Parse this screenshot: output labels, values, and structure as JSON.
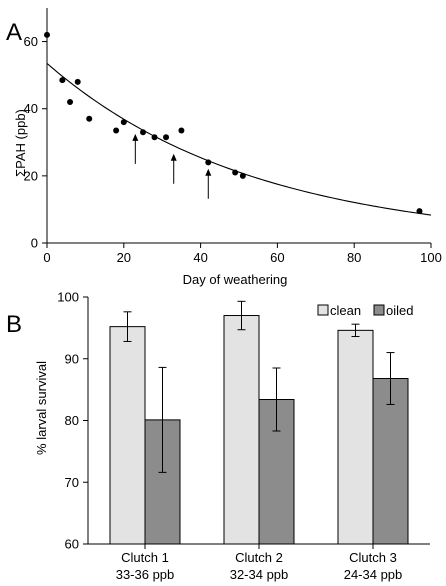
{
  "colors": {
    "clean": "#e3e3e3",
    "oiled": "#8c8c8c",
    "ink": "#000000"
  },
  "chart_data": [
    {
      "panel": "A",
      "type": "scatter",
      "xlabel": "Day of weathering",
      "ylabel": "ΣPAH (ppb)",
      "xlim": [
        0,
        100
      ],
      "ylim": [
        0,
        70
      ],
      "xticks": [
        0,
        20,
        40,
        60,
        80,
        100
      ],
      "yticks": [
        0,
        20,
        40,
        60
      ],
      "points": [
        {
          "x": 0,
          "y": 62
        },
        {
          "x": 4,
          "y": 48.5
        },
        {
          "x": 6,
          "y": 42
        },
        {
          "x": 8,
          "y": 48
        },
        {
          "x": 11,
          "y": 37
        },
        {
          "x": 18,
          "y": 33.5
        },
        {
          "x": 20,
          "y": 36
        },
        {
          "x": 25,
          "y": 33
        },
        {
          "x": 28,
          "y": 31.5
        },
        {
          "x": 31,
          "y": 31.5
        },
        {
          "x": 35,
          "y": 33.5
        },
        {
          "x": 42,
          "y": 24
        },
        {
          "x": 49,
          "y": 21
        },
        {
          "x": 51,
          "y": 20
        },
        {
          "x": 97,
          "y": 9.5
        }
      ],
      "fit": {
        "form": "exponential",
        "a": 53.5,
        "k": 0.0186,
        "x_range": [
          0,
          100
        ]
      },
      "arrows_at_day": [
        23,
        33,
        42
      ]
    },
    {
      "panel": "B",
      "type": "bar",
      "ylabel": "% larval survival",
      "ylim": [
        60,
        100
      ],
      "yticks": [
        60,
        70,
        80,
        90,
        100
      ],
      "categories": [
        {
          "name": "Clutch 1",
          "range": "33-36 ppb"
        },
        {
          "name": "Clutch 2",
          "range": "32-34 ppb"
        },
        {
          "name": "Clutch 3",
          "range": "24-34 ppb"
        }
      ],
      "series": [
        {
          "name": "clean",
          "values": [
            95.2,
            97,
            94.6
          ],
          "errors": [
            2.4,
            2.3,
            1.0
          ]
        },
        {
          "name": "oiled",
          "values": [
            80.1,
            83.4,
            86.8
          ],
          "errors": [
            8.5,
            5.1,
            4.2
          ]
        }
      ],
      "legend": "top-right"
    }
  ]
}
